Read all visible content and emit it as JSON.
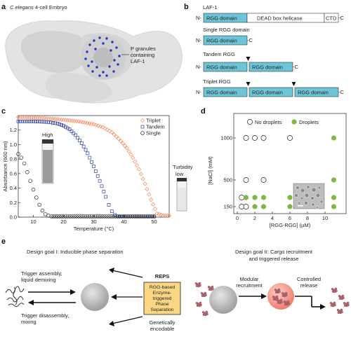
{
  "panels": {
    "a": "a",
    "b": "b",
    "c": "c",
    "d": "d",
    "e": "e"
  },
  "panel_a": {
    "title_italic": "C.elegans",
    "title_rest": " 4-cell Embryo",
    "label_line1": "P granules",
    "label_line2": "containing",
    "label_line3": "LAF-1"
  },
  "panel_b": {
    "constructs": [
      {
        "name": "LAF-1",
        "n": "N-",
        "c": "-C",
        "rgg": "RGG domain",
        "helicase": "DEAD box helicase",
        "ctd": "CTD"
      },
      {
        "name": "Single RGG domain",
        "n": "N-",
        "c": "-C",
        "rgg": "RGG domain"
      },
      {
        "name": "Tandem RGG",
        "n": "N-",
        "c": "-C",
        "rgg1": "RGG domain",
        "rgg2": "RGG domain"
      },
      {
        "name": "Triplet RGG",
        "n": "N-",
        "c": "-C",
        "rgg1": "RGG domain",
        "rgg2": "RGG domain",
        "rgg3": "RGG domain"
      }
    ]
  },
  "panel_c": {
    "high_label": "High",
    "turbidity_line1": "Turbidity",
    "turbidity_line2": "low"
  },
  "panel_d": {
    "legend_no": "No droplets",
    "legend_yes": "Droplets"
  },
  "panel_e": {
    "goal1": "Design goal I: Inducible phase separation",
    "goal2_line1": "Design goal II: Cargo recruitment",
    "goal2_line2": "and triggered release",
    "trigger_assembly_1": "Trigger assembly,",
    "trigger_assembly_2": "liquid demixing",
    "trigger_disassembly_1": "Trigger disassembly,",
    "trigger_disassembly_2": "mixing",
    "reps_title": "REPS",
    "reps_line1": "RGG-based",
    "reps_line2": "Enzyme-",
    "reps_line3": "triggered",
    "reps_line4": "Phase",
    "reps_line5": "Separation",
    "genetic_1": "Genetically",
    "genetic_2": "encodable",
    "modular_1": "Modular",
    "modular_2": "recruitment",
    "controlled_1": "Controlled",
    "controlled_2": "release"
  },
  "chart_data": [
    {
      "type": "scatter",
      "panel": "c",
      "xlabel": "Temperature (°C)",
      "ylabel": "Absorbance (600 nm)",
      "xlim": [
        5,
        55
      ],
      "ylim": [
        0,
        1.4
      ],
      "xticks": [
        10,
        20,
        30,
        40,
        50
      ],
      "yticks": [
        0.0,
        0.2,
        0.4,
        0.6,
        0.8,
        1.0,
        1.2
      ],
      "legend_position": "top-right",
      "series": [
        {
          "name": "Triplet",
          "marker": "diamond",
          "color": "#f08a5d",
          "x": [
            5,
            10,
            15,
            20,
            25,
            30,
            33,
            36,
            39,
            41,
            43,
            45,
            47,
            49,
            51,
            53,
            55
          ],
          "y": [
            1.38,
            1.37,
            1.36,
            1.34,
            1.32,
            1.28,
            1.24,
            1.17,
            1.05,
            0.95,
            0.82,
            0.66,
            0.46,
            0.24,
            0.05,
            0.02,
            0.02
          ]
        },
        {
          "name": "Tandem",
          "marker": "square",
          "color": "#2e3fa0",
          "x": [
            5,
            10,
            15,
            18,
            20,
            22,
            24,
            26,
            28,
            30,
            32,
            34,
            35,
            36,
            37,
            38,
            40,
            45,
            50
          ],
          "y": [
            1.32,
            1.32,
            1.31,
            1.29,
            1.26,
            1.21,
            1.13,
            1.02,
            0.88,
            0.7,
            0.5,
            0.28,
            0.17,
            0.08,
            0.03,
            0.01,
            0.01,
            0.01,
            0.01
          ]
        },
        {
          "name": "Single",
          "marker": "circle",
          "color": "#222222",
          "x": [
            5,
            6,
            7,
            8,
            9,
            10,
            11,
            12,
            13,
            14,
            15,
            16,
            18,
            20,
            25,
            30,
            35,
            40,
            45,
            50
          ],
          "y": [
            0.87,
            0.82,
            0.74,
            0.62,
            0.5,
            0.38,
            0.27,
            0.17,
            0.09,
            0.04,
            0.02,
            0.01,
            0.01,
            0.01,
            0.01,
            0.01,
            0.01,
            0.01,
            0.01,
            0.01
          ]
        }
      ]
    },
    {
      "type": "scatter",
      "panel": "d",
      "xlabel": "[RGG-RGG] (µM)",
      "ylabel": "[NaCl] (mM)",
      "xlim": [
        0,
        12
      ],
      "xticks": [
        0,
        2,
        4,
        6,
        8,
        10
      ],
      "yticks": [
        150,
        500,
        1000
      ],
      "legend_position": "top",
      "series": [
        {
          "name": "No droplets",
          "marker": "open-circle",
          "points": [
            [
              1,
              1000
            ],
            [
              2,
              1000
            ],
            [
              3,
              1000
            ],
            [
              6,
              1000
            ],
            [
              1,
              500
            ],
            [
              3,
              500
            ],
            [
              0.5,
              250
            ],
            [
              0.5,
              150
            ],
            [
              1,
              150
            ]
          ]
        },
        {
          "name": "Droplets",
          "marker": "filled-circle",
          "color": "#7db843",
          "points": [
            [
              11,
              1000
            ],
            [
              11,
              500
            ],
            [
              1,
              250
            ],
            [
              2,
              250
            ],
            [
              3,
              250
            ],
            [
              6,
              250
            ],
            [
              11,
              250
            ],
            [
              2,
              150
            ],
            [
              3,
              150
            ],
            [
              6,
              150
            ],
            [
              11,
              150
            ]
          ]
        }
      ]
    }
  ]
}
